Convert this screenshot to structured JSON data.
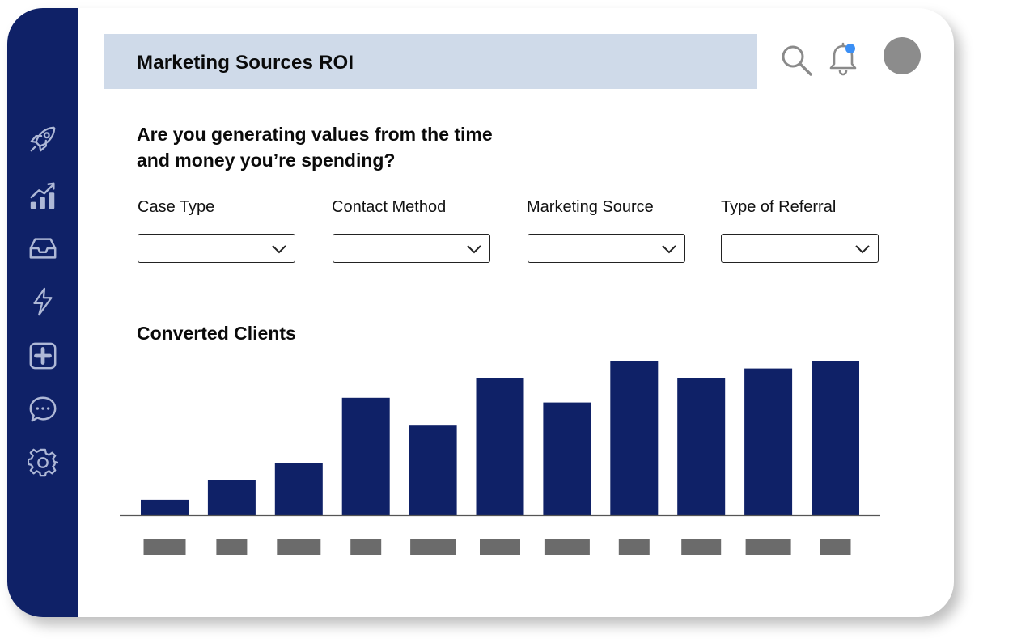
{
  "header": {
    "title": "Marketing Sources ROI"
  },
  "topbar": {
    "has_notification": true,
    "notification_color": "#3b8ff5"
  },
  "sidebar": {
    "background": "#0f2167",
    "icons": [
      "rocket-icon",
      "chart-icon",
      "inbox-icon",
      "lightning-icon",
      "plus-square-icon",
      "chat-icon",
      "gear-icon"
    ]
  },
  "question": {
    "line1": "Are you generating values from the time",
    "line2": "and money you’re spending?"
  },
  "filters": [
    {
      "label": "Case Type",
      "value": ""
    },
    {
      "label": "Contact Method",
      "value": ""
    },
    {
      "label": "Marketing Source",
      "value": ""
    },
    {
      "label": "Type of Referral",
      "value": ""
    }
  ],
  "chart_data": {
    "type": "bar",
    "title": "Converted Clients",
    "values": [
      10,
      23,
      34,
      76,
      58,
      89,
      73,
      100,
      89,
      95,
      100
    ],
    "ylim": [
      0,
      100
    ],
    "bar_color": "#0f2167",
    "label_placeholder_color": "#6b6b6b",
    "xlabel": "",
    "ylabel": ""
  }
}
